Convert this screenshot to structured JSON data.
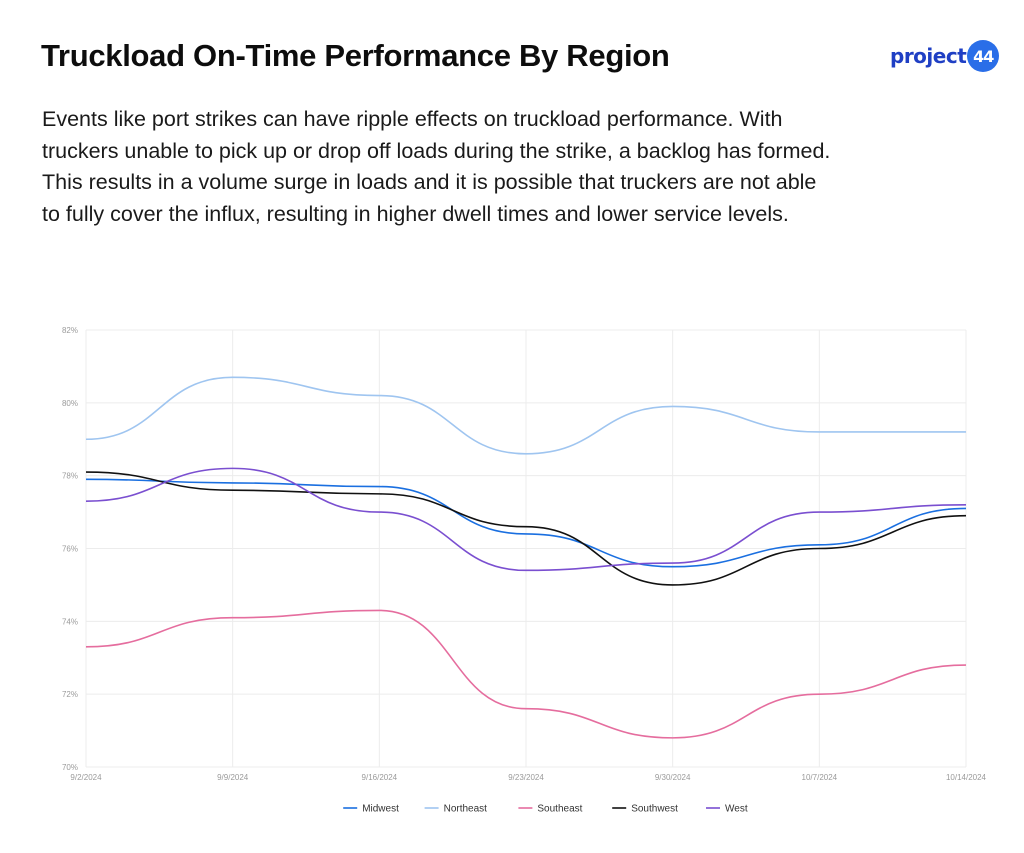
{
  "header": {
    "title": "Truckload On-Time Performance By Region",
    "logo_text": "project",
    "logo_badge": "44"
  },
  "description": "Events like port strikes can have ripple effects on truckload performance. With truckers unable to pick up or drop off loads during the strike, a backlog has formed. This results in a volume surge in loads and it is possible that truckers are not able to fully cover the influx, resulting in higher dwell times and lower service levels.",
  "chart_data": {
    "type": "line",
    "title": "",
    "xlabel": "",
    "ylabel": "",
    "x": [
      "9/2/2024",
      "9/9/2024",
      "9/16/2024",
      "9/23/2024",
      "9/30/2024",
      "10/7/2024",
      "10/14/2024"
    ],
    "y_ticks": [
      "70%",
      "72%",
      "74%",
      "76%",
      "78%",
      "80%",
      "82%"
    ],
    "ylim": [
      70,
      82
    ],
    "grid": true,
    "legend_position": "bottom",
    "series": [
      {
        "name": "Midwest",
        "color": "#1a6fe0",
        "values": [
          77.9,
          77.8,
          77.7,
          76.4,
          75.5,
          76.1,
          77.1
        ]
      },
      {
        "name": "Northeast",
        "color": "#9fc5f0",
        "values": [
          79.0,
          80.7,
          80.2,
          78.6,
          79.9,
          79.2,
          79.2
        ]
      },
      {
        "name": "Southeast",
        "color": "#e56d9e",
        "values": [
          73.3,
          74.1,
          74.3,
          71.6,
          70.8,
          72.0,
          72.8
        ]
      },
      {
        "name": "Southwest",
        "color": "#111111",
        "values": [
          78.1,
          77.6,
          77.5,
          76.6,
          75.0,
          76.0,
          76.9
        ]
      },
      {
        "name": "West",
        "color": "#7a4fd0",
        "values": [
          77.3,
          78.2,
          77.0,
          75.4,
          75.6,
          77.0,
          77.2
        ]
      }
    ]
  }
}
